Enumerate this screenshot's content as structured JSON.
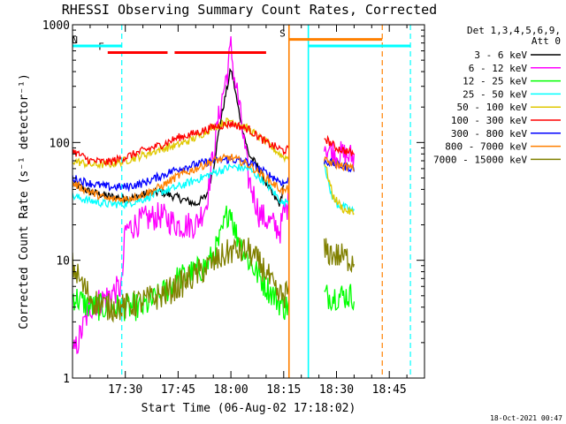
{
  "chart_data": {
    "type": "line",
    "title": "RHESSI Observing Summary Count Rates, Corrected",
    "xlabel": "Start Time (06-Aug-02 17:18:02)",
    "ylabel": "Corrected Count Rate (s⁻¹ detector⁻¹)",
    "yscale": "log",
    "ylim": [
      1,
      1000
    ],
    "xlim_minutes": [
      0,
      100
    ],
    "x_unit": "minutes since 17:18:02",
    "x_tick_labels": [
      "17:30",
      "17:45",
      "18:00",
      "18:15",
      "18:30",
      "18:45"
    ],
    "x_tick_minutes": [
      15,
      30,
      45,
      60,
      75,
      90
    ],
    "y_tick_labels": [
      "1",
      "10",
      "100",
      "1000"
    ],
    "y_tick_values": [
      1,
      10,
      100,
      1000
    ],
    "legend_header": [
      "Det 1,3,4,5,6,9,",
      "Att 0"
    ],
    "legend_placement": "right-outside",
    "series": [
      {
        "name": "3 - 6 keV",
        "color": "#000000",
        "x": [
          0,
          5,
          10,
          14,
          17,
          20,
          25,
          30,
          35,
          38,
          40,
          42,
          44,
          45,
          46,
          47,
          50,
          53,
          55,
          57,
          59,
          60
        ],
        "y": [
          45,
          38,
          35,
          34,
          34,
          36,
          38,
          34,
          30,
          35,
          60,
          150,
          300,
          420,
          300,
          200,
          80,
          60,
          45,
          35,
          30,
          45
        ]
      },
      {
        "name": "6 - 12 keV",
        "color": "#ff00ff",
        "x": [
          0,
          5,
          10,
          14,
          15,
          20,
          25,
          30,
          35,
          38,
          40,
          42,
          44,
          45,
          46,
          47,
          50,
          53,
          55,
          57,
          59,
          60,
          71.5,
          72,
          75,
          80
        ],
        "y": [
          1.5,
          4,
          5,
          6,
          18,
          22,
          24,
          20,
          20,
          30,
          80,
          200,
          400,
          650,
          350,
          250,
          50,
          25,
          22,
          20,
          18,
          25,
          110,
          90,
          80,
          75
        ]
      },
      {
        "name": "12 - 25 keV",
        "color": "#00ff00",
        "x": [
          0,
          5,
          10,
          15,
          20,
          25,
          30,
          35,
          38,
          40,
          42,
          44,
          45,
          46,
          50,
          55,
          60,
          71.5,
          75,
          80
        ],
        "y": [
          5,
          4,
          4,
          4,
          4,
          5,
          7,
          8,
          9,
          11,
          15,
          25,
          28,
          18,
          10,
          6,
          4,
          5,
          5,
          5
        ]
      },
      {
        "name": "25 - 50 keV",
        "color": "#00ffff",
        "x": [
          0,
          5,
          10,
          15,
          20,
          25,
          30,
          35,
          40,
          45,
          50,
          55,
          60,
          71.5,
          73,
          75,
          80
        ],
        "y": [
          35,
          32,
          30,
          30,
          33,
          38,
          42,
          48,
          55,
          62,
          60,
          45,
          30,
          70,
          40,
          30,
          26
        ]
      },
      {
        "name": "50 - 100 keV",
        "color": "#e0c800",
        "x": [
          0,
          5,
          10,
          15,
          20,
          25,
          30,
          35,
          40,
          45,
          50,
          55,
          60,
          71.5,
          74,
          77,
          80
        ],
        "y": [
          70,
          65,
          65,
          70,
          78,
          88,
          95,
          110,
          135,
          155,
          130,
          100,
          75,
          70,
          35,
          27,
          25
        ]
      },
      {
        "name": "100 - 300 keV",
        "color": "#ff0000",
        "x": [
          0,
          5,
          10,
          15,
          20,
          25,
          30,
          35,
          40,
          45,
          50,
          55,
          60,
          71.5,
          75,
          80
        ],
        "y": [
          85,
          70,
          68,
          75,
          85,
          95,
          110,
          120,
          135,
          145,
          130,
          100,
          85,
          110,
          90,
          80
        ]
      },
      {
        "name": "300 - 800 keV",
        "color": "#0000ff",
        "x": [
          0,
          5,
          10,
          15,
          20,
          25,
          30,
          35,
          40,
          45,
          50,
          55,
          60,
          71.5,
          75,
          80
        ],
        "y": [
          50,
          45,
          42,
          42,
          45,
          52,
          60,
          65,
          70,
          72,
          68,
          55,
          45,
          70,
          65,
          60
        ]
      },
      {
        "name": "800 - 7000 keV",
        "color": "#ff8000",
        "x": [
          0,
          5,
          10,
          15,
          20,
          25,
          30,
          35,
          40,
          45,
          50,
          55,
          60,
          71.5,
          75,
          80
        ],
        "y": [
          45,
          38,
          33,
          33,
          36,
          42,
          52,
          60,
          70,
          75,
          65,
          50,
          38,
          70,
          65,
          60
        ]
      },
      {
        "name": "7000 - 15000 keV",
        "color": "#808000",
        "x": [
          0,
          3,
          6,
          10,
          15,
          20,
          25,
          30,
          35,
          40,
          45,
          50,
          55,
          58,
          60,
          71.5,
          75,
          80
        ],
        "y": [
          9,
          6,
          4.5,
          4,
          4,
          4.5,
          5,
          6,
          7.5,
          9.5,
          12,
          12,
          8,
          5,
          5,
          12,
          11,
          10
        ]
      }
    ],
    "annotations": [
      {
        "text": "F",
        "color": "#ff0000",
        "bars_minutes": [
          [
            10,
            27
          ],
          [
            29,
            55
          ]
        ],
        "y": 580
      },
      {
        "text": "N",
        "color": "#00ffff",
        "bars_minutes": [
          [
            -3,
            14
          ],
          [
            67,
            96
          ]
        ],
        "y": 660
      },
      {
        "text": "S",
        "color": "#ff8000",
        "bars_minutes": [
          [
            61.5,
            88
          ]
        ],
        "y": 750
      }
    ],
    "vertical_lines": [
      {
        "minute": 14,
        "color": "#00ffff",
        "style": "dashed"
      },
      {
        "minute": 61.5,
        "color": "#ff8000",
        "style": "solid"
      },
      {
        "minute": 67,
        "color": "#00ffff",
        "style": "solid"
      },
      {
        "minute": 88,
        "color": "#ff8000",
        "style": "dashed"
      },
      {
        "minute": 96,
        "color": "#00ffff",
        "style": "dashed"
      }
    ],
    "data_gap_minutes": [
      61.5,
      71.5
    ],
    "grid": false
  },
  "footer_timestamp": "18-Oct-2021 00:47"
}
